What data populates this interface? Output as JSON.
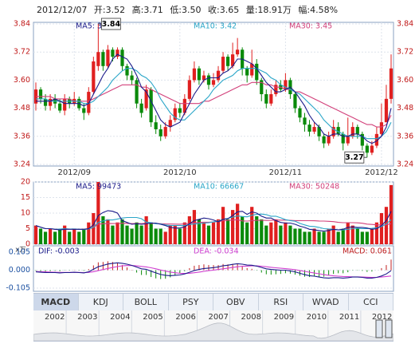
{
  "quote": {
    "date": "2012/12/07",
    "open": "开:3.52",
    "high": "高:3.71",
    "low": "低:3.50",
    "close": "收:3.65",
    "volume": "量:18.91万",
    "amplitude": "幅:4.58%"
  },
  "colors": {
    "up": "#e02020",
    "down": "#0a8a0a",
    "ma5": "#1b1b8a",
    "ma10": "#2aa6c8",
    "ma30": "#d2407a"
  },
  "tabs": [
    "MACD",
    "KDJ",
    "BOLL",
    "PSY",
    "OBV",
    "RSI",
    "WVAD",
    "CCI"
  ],
  "active_tab": "MACD",
  "timeline_years": [
    "2002",
    "2003",
    "2004",
    "2005",
    "2006",
    "2007",
    "2008",
    "2009",
    "2010",
    "2011",
    "2012"
  ],
  "chart_data": [
    {
      "type": "candlestick",
      "x_labels": [
        "2012/09",
        "2012/10",
        "2012/11",
        "2012/12"
      ],
      "y_ticks": [
        3.24,
        3.36,
        3.48,
        3.6,
        3.72,
        3.84
      ],
      "ylim": [
        3.24,
        3.84
      ],
      "legend": [
        "MA5: 3.48",
        "MA10: 3.42",
        "MA30: 3.45"
      ],
      "annotations": [
        {
          "text": "3.84"
        },
        {
          "text": "3.27"
        }
      ],
      "candles": [
        [
          3.5,
          3.56,
          3.59,
          3.47
        ],
        [
          3.56,
          3.52,
          3.57,
          3.5
        ],
        [
          3.52,
          3.49,
          3.54,
          3.47
        ],
        [
          3.49,
          3.52,
          3.54,
          3.47
        ],
        [
          3.52,
          3.5,
          3.54,
          3.48
        ],
        [
          3.5,
          3.47,
          3.52,
          3.46
        ],
        [
          3.47,
          3.52,
          3.54,
          3.45
        ],
        [
          3.52,
          3.5,
          3.53,
          3.48
        ],
        [
          3.5,
          3.52,
          3.55,
          3.49
        ],
        [
          3.52,
          3.48,
          3.53,
          3.47
        ],
        [
          3.48,
          3.46,
          3.5,
          3.43
        ],
        [
          3.46,
          3.55,
          3.57,
          3.45
        ],
        [
          3.55,
          3.68,
          3.7,
          3.54
        ],
        [
          3.66,
          3.72,
          3.84,
          3.64
        ],
        [
          3.72,
          3.66,
          3.73,
          3.64
        ],
        [
          3.66,
          3.73,
          3.75,
          3.65
        ],
        [
          3.73,
          3.7,
          3.74,
          3.68
        ],
        [
          3.7,
          3.73,
          3.74,
          3.69
        ],
        [
          3.73,
          3.66,
          3.74,
          3.64
        ],
        [
          3.66,
          3.62,
          3.67,
          3.6
        ],
        [
          3.62,
          3.6,
          3.64,
          3.58
        ],
        [
          3.6,
          3.5,
          3.61,
          3.48
        ],
        [
          3.5,
          3.46,
          3.52,
          3.44
        ],
        [
          3.48,
          3.56,
          3.58,
          3.47
        ],
        [
          3.56,
          3.42,
          3.57,
          3.4
        ],
        [
          3.42,
          3.39,
          3.45,
          3.37
        ],
        [
          3.39,
          3.36,
          3.41,
          3.34
        ],
        [
          3.36,
          3.4,
          3.42,
          3.35
        ],
        [
          3.4,
          3.43,
          3.45,
          3.38
        ],
        [
          3.43,
          3.48,
          3.5,
          3.42
        ],
        [
          3.48,
          3.46,
          3.5,
          3.44
        ],
        [
          3.46,
          3.52,
          3.54,
          3.45
        ],
        [
          3.52,
          3.6,
          3.62,
          3.51
        ],
        [
          3.6,
          3.65,
          3.68,
          3.59
        ],
        [
          3.65,
          3.6,
          3.66,
          3.58
        ],
        [
          3.6,
          3.62,
          3.64,
          3.59
        ],
        [
          3.62,
          3.58,
          3.63,
          3.56
        ],
        [
          3.58,
          3.6,
          3.63,
          3.57
        ],
        [
          3.6,
          3.64,
          3.66,
          3.59
        ],
        [
          3.64,
          3.7,
          3.72,
          3.63
        ],
        [
          3.7,
          3.66,
          3.71,
          3.64
        ],
        [
          3.66,
          3.71,
          3.76,
          3.65
        ],
        [
          3.71,
          3.73,
          3.78,
          3.7
        ],
        [
          3.73,
          3.65,
          3.74,
          3.62
        ],
        [
          3.65,
          3.62,
          3.66,
          3.59
        ],
        [
          3.62,
          3.67,
          3.73,
          3.61
        ],
        [
          3.67,
          3.6,
          3.69,
          3.58
        ],
        [
          3.6,
          3.54,
          3.61,
          3.51
        ],
        [
          3.54,
          3.5,
          3.56,
          3.48
        ],
        [
          3.5,
          3.54,
          3.56,
          3.49
        ],
        [
          3.54,
          3.58,
          3.6,
          3.53
        ],
        [
          3.58,
          3.56,
          3.6,
          3.55
        ],
        [
          3.56,
          3.6,
          3.63,
          3.55
        ],
        [
          3.6,
          3.54,
          3.61,
          3.52
        ],
        [
          3.54,
          3.48,
          3.55,
          3.46
        ],
        [
          3.48,
          3.44,
          3.49,
          3.42
        ],
        [
          3.44,
          3.41,
          3.46,
          3.38
        ],
        [
          3.41,
          3.38,
          3.43,
          3.36
        ],
        [
          3.38,
          3.4,
          3.42,
          3.37
        ],
        [
          3.4,
          3.36,
          3.41,
          3.34
        ],
        [
          3.36,
          3.33,
          3.37,
          3.31
        ],
        [
          3.33,
          3.36,
          3.38,
          3.32
        ],
        [
          3.36,
          3.4,
          3.43,
          3.35
        ],
        [
          3.4,
          3.37,
          3.42,
          3.36
        ],
        [
          3.37,
          3.33,
          3.38,
          3.3
        ],
        [
          3.33,
          3.36,
          3.44,
          3.32
        ],
        [
          3.36,
          3.4,
          3.42,
          3.35
        ],
        [
          3.4,
          3.37,
          3.41,
          3.35
        ],
        [
          3.37,
          3.32,
          3.38,
          3.3
        ],
        [
          3.32,
          3.29,
          3.33,
          3.27
        ],
        [
          3.29,
          3.32,
          3.34,
          3.28
        ],
        [
          3.32,
          3.37,
          3.4,
          3.31
        ],
        [
          3.37,
          3.42,
          3.5,
          3.36
        ],
        [
          3.42,
          3.52,
          3.58,
          3.48
        ],
        [
          3.52,
          3.65,
          3.71,
          3.5
        ]
      ],
      "ma5": [
        3.51,
        3.51,
        3.51,
        3.51,
        3.52,
        3.51,
        3.5,
        3.5,
        3.5,
        3.5,
        3.49,
        3.5,
        3.54,
        3.58,
        3.62,
        3.65,
        3.69,
        3.71,
        3.7,
        3.69,
        3.66,
        3.62,
        3.57,
        3.55,
        3.51,
        3.47,
        3.43,
        3.41,
        3.4,
        3.41,
        3.42,
        3.46,
        3.5,
        3.54,
        3.57,
        3.6,
        3.61,
        3.61,
        3.61,
        3.63,
        3.64,
        3.66,
        3.69,
        3.69,
        3.68,
        3.67,
        3.65,
        3.62,
        3.59,
        3.57,
        3.55,
        3.55,
        3.56,
        3.57,
        3.55,
        3.52,
        3.49,
        3.45,
        3.42,
        3.4,
        3.37,
        3.36,
        3.37,
        3.37,
        3.36,
        3.36,
        3.37,
        3.37,
        3.36,
        3.34,
        3.33,
        3.34,
        3.36,
        3.4,
        3.48
      ],
      "ma10": [
        3.52,
        3.52,
        3.52,
        3.51,
        3.51,
        3.51,
        3.51,
        3.51,
        3.51,
        3.51,
        3.5,
        3.5,
        3.51,
        3.53,
        3.55,
        3.57,
        3.6,
        3.62,
        3.64,
        3.65,
        3.65,
        3.64,
        3.62,
        3.61,
        3.59,
        3.56,
        3.52,
        3.49,
        3.46,
        3.44,
        3.43,
        3.43,
        3.45,
        3.47,
        3.49,
        3.51,
        3.53,
        3.56,
        3.58,
        3.6,
        3.61,
        3.62,
        3.64,
        3.65,
        3.65,
        3.65,
        3.65,
        3.64,
        3.63,
        3.61,
        3.6,
        3.58,
        3.57,
        3.56,
        3.55,
        3.54,
        3.52,
        3.5,
        3.48,
        3.46,
        3.43,
        3.41,
        3.39,
        3.38,
        3.37,
        3.36,
        3.36,
        3.36,
        3.36,
        3.35,
        3.35,
        3.35,
        3.36,
        3.38,
        3.42
      ],
      "ma30": [
        3.53,
        3.53,
        3.53,
        3.53,
        3.52,
        3.52,
        3.52,
        3.52,
        3.51,
        3.51,
        3.51,
        3.51,
        3.52,
        3.53,
        3.54,
        3.55,
        3.56,
        3.57,
        3.58,
        3.58,
        3.58,
        3.58,
        3.57,
        3.57,
        3.56,
        3.55,
        3.54,
        3.53,
        3.52,
        3.51,
        3.5,
        3.5,
        3.5,
        3.5,
        3.5,
        3.51,
        3.51,
        3.52,
        3.53,
        3.54,
        3.55,
        3.56,
        3.57,
        3.58,
        3.58,
        3.59,
        3.59,
        3.59,
        3.58,
        3.58,
        3.57,
        3.57,
        3.56,
        3.56,
        3.55,
        3.55,
        3.54,
        3.53,
        3.52,
        3.51,
        3.5,
        3.49,
        3.48,
        3.47,
        3.46,
        3.45,
        3.44,
        3.43,
        3.42,
        3.41,
        3.41,
        3.4,
        3.4,
        3.41,
        3.45
      ]
    },
    {
      "type": "bar",
      "y_ticks": [
        0,
        5,
        10,
        15,
        20
      ],
      "ylim": [
        0,
        20
      ],
      "unit": "x万",
      "legend": [
        "MA5: 99473",
        "MA10: 66667",
        "MA30: 50248"
      ],
      "volume": [
        6,
        5,
        4,
        5,
        4,
        5,
        6,
        4,
        5,
        4,
        5,
        7,
        10,
        20,
        9,
        8,
        6,
        7,
        8,
        6,
        5,
        7,
        6,
        9,
        7,
        5,
        5,
        4,
        6,
        6,
        5,
        7,
        9,
        11,
        8,
        7,
        6,
        7,
        8,
        12,
        8,
        11,
        13,
        9,
        7,
        12,
        9,
        8,
        6,
        7,
        8,
        6,
        7,
        6,
        5,
        5,
        4,
        4,
        5,
        4,
        4,
        5,
        6,
        4,
        5,
        7,
        6,
        5,
        4,
        4,
        5,
        7,
        10,
        12,
        19
      ]
    },
    {
      "type": "line",
      "y_ticks": [
        0.105,
        0.0,
        -0.105
      ],
      "ylim": [
        -0.105,
        0.105
      ],
      "legend": [
        "DIF: -0.003",
        "DEA: -0.034",
        "MACD: 0.061"
      ],
      "dif": [
        -0.01,
        -0.012,
        -0.014,
        -0.014,
        -0.014,
        -0.016,
        -0.014,
        -0.014,
        -0.012,
        -0.014,
        -0.016,
        -0.01,
        0.005,
        0.02,
        0.028,
        0.036,
        0.04,
        0.043,
        0.04,
        0.035,
        0.028,
        0.018,
        0.008,
        0.005,
        -0.006,
        -0.016,
        -0.025,
        -0.03,
        -0.032,
        -0.03,
        -0.028,
        -0.022,
        -0.012,
        -0.002,
        0.004,
        0.01,
        0.012,
        0.015,
        0.019,
        0.026,
        0.029,
        0.034,
        0.038,
        0.035,
        0.03,
        0.029,
        0.024,
        0.016,
        0.008,
        0.004,
        0.002,
        0.0,
        0.0,
        -0.004,
        -0.01,
        -0.018,
        -0.026,
        -0.032,
        -0.035,
        -0.04,
        -0.045,
        -0.046,
        -0.044,
        -0.044,
        -0.046,
        -0.044,
        -0.04,
        -0.04,
        -0.042,
        -0.046,
        -0.046,
        -0.042,
        -0.034,
        -0.022,
        -0.003
      ],
      "dea": [
        -0.008,
        -0.009,
        -0.01,
        -0.011,
        -0.012,
        -0.013,
        -0.013,
        -0.013,
        -0.013,
        -0.013,
        -0.014,
        -0.013,
        -0.009,
        -0.003,
        0.004,
        0.01,
        0.016,
        0.021,
        0.025,
        0.027,
        0.027,
        0.025,
        0.022,
        0.019,
        0.014,
        0.008,
        0.001,
        -0.005,
        -0.011,
        -0.015,
        -0.018,
        -0.019,
        -0.018,
        -0.015,
        -0.011,
        -0.007,
        -0.003,
        0.0,
        0.004,
        0.008,
        0.012,
        0.016,
        0.02,
        0.023,
        0.024,
        0.025,
        0.025,
        0.023,
        0.02,
        0.017,
        0.014,
        0.011,
        0.009,
        0.006,
        0.003,
        -0.002,
        -0.007,
        -0.012,
        -0.017,
        -0.021,
        -0.026,
        -0.03,
        -0.033,
        -0.035,
        -0.037,
        -0.038,
        -0.039,
        -0.039,
        -0.04,
        -0.041,
        -0.042,
        -0.042,
        -0.04,
        -0.037,
        -0.034
      ]
    }
  ]
}
